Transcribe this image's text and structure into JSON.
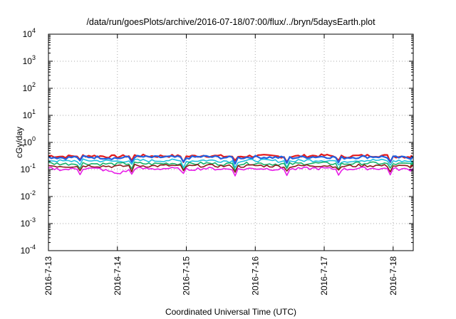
{
  "chart_data": {
    "type": "line",
    "title": "/data/run/goesPlots/archive/2016-07-18/07:00/flux/../bryn/5daysEarth.plot",
    "xlabel": "Coordinated Universal Time (UTC)",
    "ylabel": "cGy/day",
    "yscale": "log",
    "ylim": [
      0.0001,
      10000
    ],
    "y_ticks": [
      {
        "base": "10",
        "exp": "-4"
      },
      {
        "base": "10",
        "exp": "-3"
      },
      {
        "base": "10",
        "exp": "-2"
      },
      {
        "base": "10",
        "exp": "-1"
      },
      {
        "base": "10",
        "exp": "0"
      },
      {
        "base": "10",
        "exp": "1"
      },
      {
        "base": "10",
        "exp": "2"
      },
      {
        "base": "10",
        "exp": "3"
      },
      {
        "base": "10",
        "exp": "4"
      }
    ],
    "xlim": [
      "2016-07-13",
      "2016-07-18 07:00"
    ],
    "x_ticks": [
      "2016-7-13",
      "2016-7-14",
      "2016-7-15",
      "2016-7-16",
      "2016-7-17",
      "2016-7-18"
    ],
    "grid": "dotted",
    "legend": "none",
    "x": [
      "2016-07-13 00:00",
      "2016-07-13 06:00",
      "2016-07-13 12:00",
      "2016-07-13 18:00",
      "2016-07-14 00:00",
      "2016-07-14 06:00",
      "2016-07-14 12:00",
      "2016-07-14 18:00",
      "2016-07-15 00:00",
      "2016-07-15 06:00",
      "2016-07-15 12:00",
      "2016-07-15 18:00",
      "2016-07-16 00:00",
      "2016-07-16 06:00",
      "2016-07-16 12:00",
      "2016-07-16 18:00",
      "2016-07-17 00:00",
      "2016-07-17 06:00",
      "2016-07-17 12:00",
      "2016-07-17 18:00",
      "2016-07-18 00:00",
      "2016-07-18 06:00"
    ],
    "series": [
      {
        "color": "#e41a1c",
        "values": [
          0.32,
          0.3,
          0.33,
          0.31,
          0.3,
          0.33,
          0.31,
          0.32,
          0.3,
          0.33,
          0.31,
          0.3,
          0.32,
          0.31,
          0.3,
          0.32,
          0.33,
          0.3,
          0.32,
          0.33,
          0.31,
          0.3
        ]
      },
      {
        "color": "#2060e0",
        "values": [
          0.29,
          0.27,
          0.3,
          0.28,
          0.26,
          0.3,
          0.28,
          0.29,
          0.27,
          0.3,
          0.28,
          0.27,
          0.29,
          0.28,
          0.27,
          0.29,
          0.3,
          0.27,
          0.29,
          0.3,
          0.28,
          0.27
        ]
      },
      {
        "color": "#1fbfe0",
        "values": [
          0.22,
          0.2,
          0.22,
          0.21,
          0.2,
          0.22,
          0.21,
          0.22,
          0.2,
          0.22,
          0.21,
          0.2,
          0.22,
          0.21,
          0.2,
          0.22,
          0.22,
          0.2,
          0.22,
          0.22,
          0.21,
          0.2
        ]
      },
      {
        "color": "#19b36b",
        "values": [
          0.17,
          0.16,
          0.17,
          0.16,
          0.16,
          0.17,
          0.16,
          0.17,
          0.16,
          0.17,
          0.16,
          0.16,
          0.17,
          0.16,
          0.16,
          0.17,
          0.17,
          0.16,
          0.17,
          0.17,
          0.16,
          0.16
        ]
      },
      {
        "color": "#8b1a1a",
        "values": [
          0.14,
          0.13,
          0.14,
          0.135,
          0.13,
          0.14,
          0.135,
          0.14,
          0.13,
          0.14,
          0.135,
          0.13,
          0.14,
          0.135,
          0.13,
          0.14,
          0.14,
          0.13,
          0.14,
          0.14,
          0.135,
          0.13
        ]
      },
      {
        "color": "#e81ce8",
        "values": [
          0.11,
          0.1,
          0.11,
          0.105,
          0.07,
          0.11,
          0.105,
          0.11,
          0.1,
          0.11,
          0.105,
          0.1,
          0.11,
          0.105,
          0.1,
          0.11,
          0.11,
          0.1,
          0.11,
          0.11,
          0.105,
          0.1
        ]
      }
    ]
  }
}
